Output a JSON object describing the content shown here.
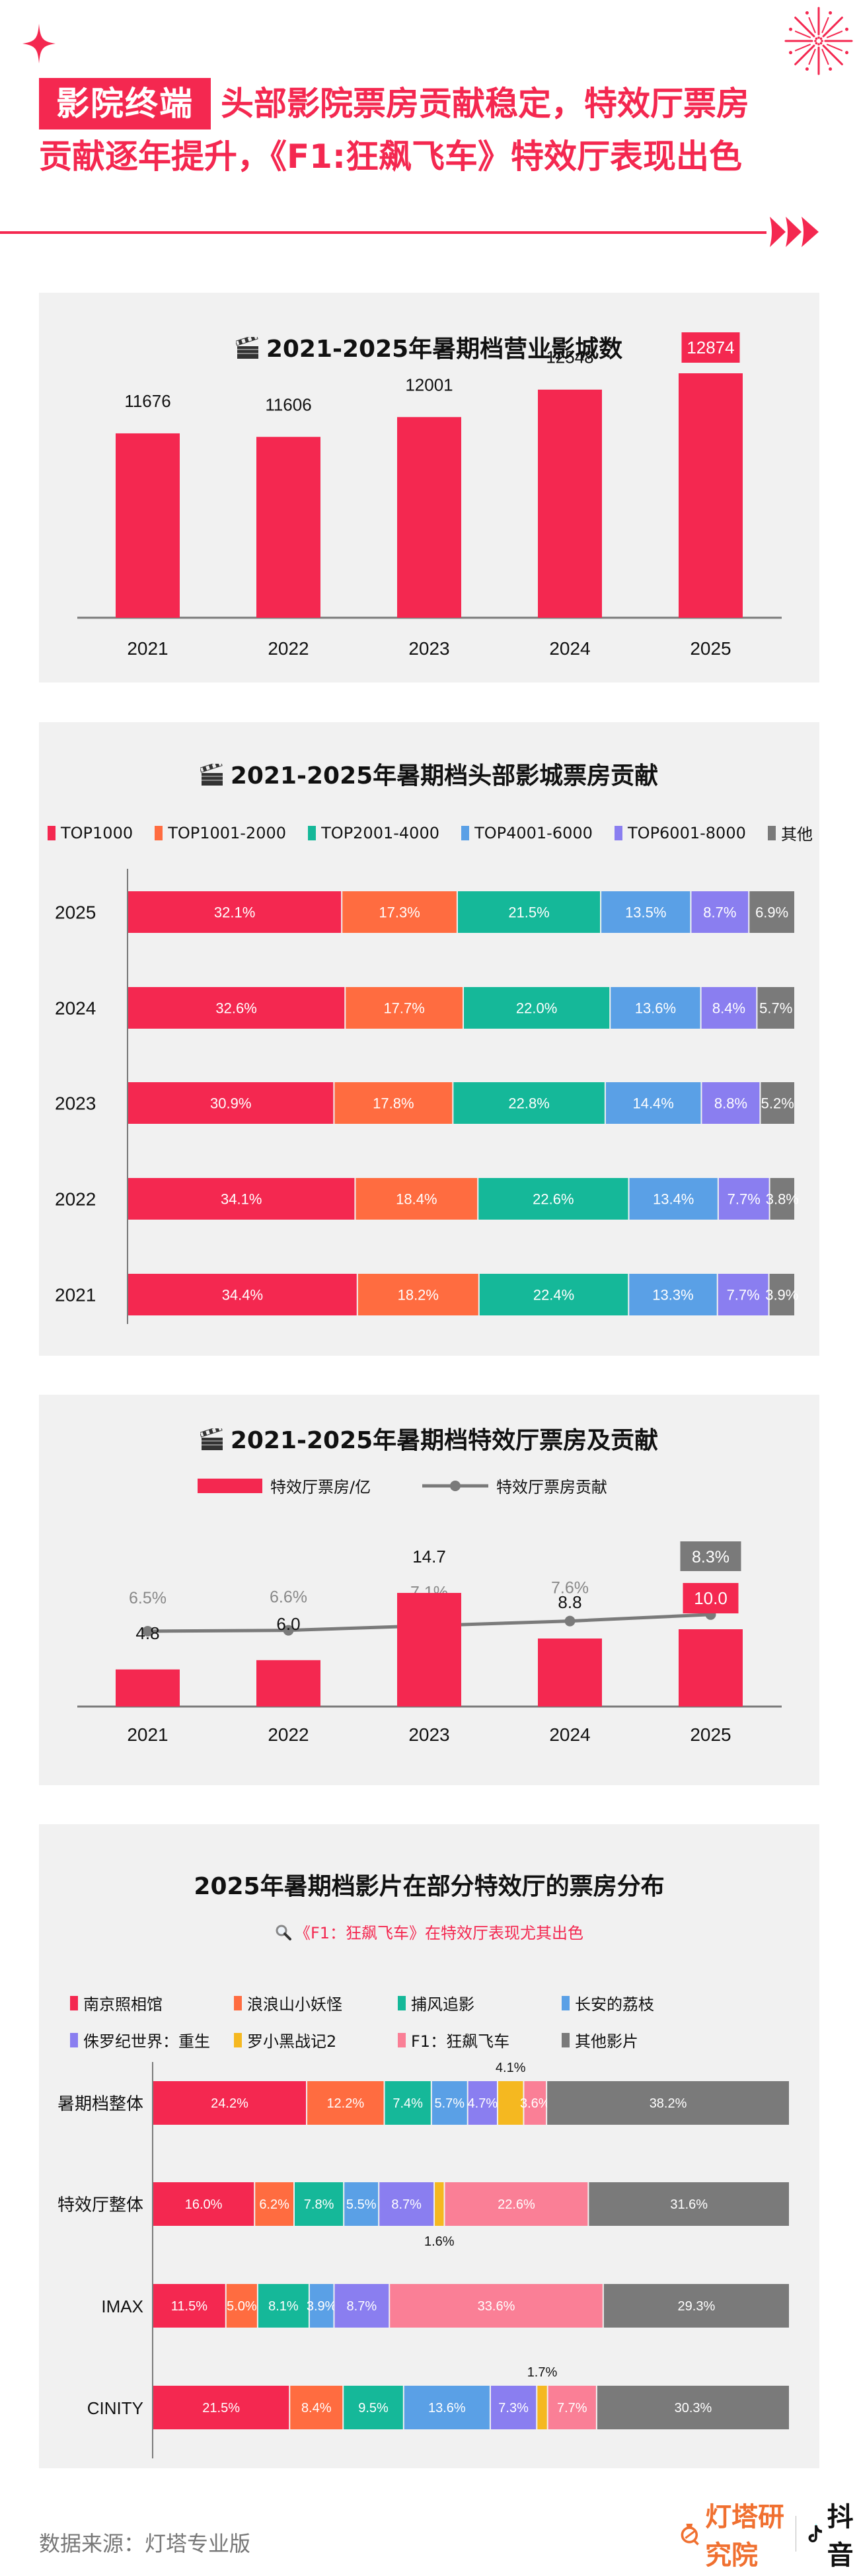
{
  "header": {
    "badge": "影院终端",
    "headline_line1": "头部影院票房贡献稳定，特效厅票房",
    "headline_line2": "贡献逐年提升，《F1:狂飙飞车》特效厅表现出色"
  },
  "colors": {
    "accent": "#f42850",
    "card_bg": "#f1f1f1",
    "gray": "#7a7a7a",
    "series": [
      "#f42850",
      "#ff6c40",
      "#15b899",
      "#5aa0e6",
      "#8a7ef0",
      "#f5b820",
      "#fa7f96",
      "#7a7a7a"
    ]
  },
  "chart_data": [
    {
      "type": "bar",
      "title": "2021-2025年暑期档营业影城数",
      "title_icon": "clapperboard-icon",
      "categories": [
        "2021",
        "2022",
        "2023",
        "2024",
        "2025"
      ],
      "values": [
        11676,
        11606,
        12001,
        12548,
        12874
      ],
      "value_labels": [
        "11676",
        "11606",
        "12001",
        "12548",
        "12874"
      ],
      "highlight_index": 4,
      "xlabel": "",
      "ylabel": "",
      "ylim": [
        8000,
        13500
      ],
      "grid": false
    },
    {
      "type": "bar",
      "orientation": "horizontal-stacked",
      "title": "2021-2025年暑期档头部影城票房贡献",
      "title_icon": "clapperboard-icon",
      "legend": [
        "TOP1000",
        "TOP1001-2000",
        "TOP2001-4000",
        "TOP4001-6000",
        "TOP6001-8000",
        "其他"
      ],
      "legend_position": "top",
      "categories": [
        "2025",
        "2024",
        "2023",
        "2022",
        "2021"
      ],
      "series": [
        {
          "name": "TOP1000",
          "values": [
            32.1,
            32.6,
            30.9,
            34.1,
            34.4
          ]
        },
        {
          "name": "TOP1001-2000",
          "values": [
            17.3,
            17.7,
            17.8,
            18.4,
            18.2
          ]
        },
        {
          "name": "TOP2001-4000",
          "values": [
            21.5,
            22.0,
            22.8,
            22.6,
            22.4
          ]
        },
        {
          "name": "TOP4001-6000",
          "values": [
            13.5,
            13.6,
            14.4,
            13.4,
            13.3
          ]
        },
        {
          "name": "TOP6001-8000",
          "values": [
            8.7,
            8.4,
            8.8,
            7.7,
            7.7
          ]
        },
        {
          "name": "其他",
          "values": [
            6.9,
            5.7,
            5.2,
            3.8,
            3.9
          ]
        }
      ],
      "unit": "%",
      "xlim": [
        0,
        100
      ]
    },
    {
      "type": "bar",
      "combo": "bar+line",
      "title": "2021-2025年暑期档特效厅票房及贡献",
      "title_icon": "clapperboard-icon",
      "legend": [
        "特效厅票房/亿",
        "特效厅票房贡献"
      ],
      "legend_position": "top",
      "categories": [
        "2021",
        "2022",
        "2023",
        "2024",
        "2025"
      ],
      "series": [
        {
          "name": "特效厅票房/亿",
          "type": "bar",
          "values": [
            4.8,
            6.0,
            14.7,
            8.8,
            10.0
          ],
          "labels": [
            "4.8",
            "6.0",
            "14.7",
            "8.8",
            "10.0"
          ]
        },
        {
          "name": "特效厅票房贡献",
          "type": "line",
          "values": [
            6.5,
            6.6,
            7.1,
            7.6,
            8.3
          ],
          "labels": [
            "6.5%",
            "6.6%",
            "7.1%",
            "7.6%",
            "8.3%"
          ]
        }
      ],
      "highlight_index": 4,
      "ylim_bar": [
        0,
        16
      ],
      "ylim_line": [
        0,
        12
      ]
    },
    {
      "type": "bar",
      "orientation": "horizontal-stacked",
      "title": "2025年暑期档影片在部分特效厅的票房分布",
      "subtitle": "《F1：狂飙飞车》在特效厅表现尤其出色",
      "subtitle_icon": "magnifier-icon",
      "legend": [
        "南京照相馆",
        "浪浪山小妖怪",
        "捕风追影",
        "长安的荔枝",
        "侏罗纪世界：重生",
        "罗小黑战记2",
        "F1：狂飙飞车",
        "其他影片"
      ],
      "legend_position": "top",
      "categories": [
        "暑期档整体",
        "特效厅整体",
        "IMAX",
        "CINITY"
      ],
      "series": [
        {
          "name": "南京照相馆",
          "values": [
            24.2,
            16.0,
            11.5,
            21.5
          ]
        },
        {
          "name": "浪浪山小妖怪",
          "values": [
            12.2,
            6.2,
            5.0,
            8.4
          ]
        },
        {
          "name": "捕风追影",
          "values": [
            7.4,
            7.8,
            8.1,
            9.5
          ]
        },
        {
          "name": "长安的荔枝",
          "values": [
            5.7,
            5.5,
            3.9,
            13.6
          ]
        },
        {
          "name": "侏罗纪世界：重生",
          "values": [
            4.7,
            8.7,
            8.7,
            7.3
          ]
        },
        {
          "name": "罗小黑战记2",
          "values": [
            4.1,
            1.6,
            0,
            1.7
          ]
        },
        {
          "name": "F1：狂飙飞车",
          "values": [
            3.6,
            22.6,
            33.6,
            7.7
          ]
        },
        {
          "name": "其他影片",
          "values": [
            38.2,
            31.6,
            29.3,
            30.3
          ]
        }
      ],
      "outside_labels": [
        {
          "row": 0,
          "series": 5,
          "text": "4.1%",
          "position": "above"
        },
        {
          "row": 1,
          "series": 5,
          "text": "1.6%",
          "position": "below"
        },
        {
          "row": 3,
          "series": 5,
          "text": "1.7%",
          "position": "above"
        }
      ],
      "unit": "%",
      "xlim": [
        0,
        100
      ]
    }
  ],
  "footer": {
    "source": "数据来源：灯塔专业版",
    "brand1": "灯塔研究院",
    "brand2": "抖音"
  }
}
